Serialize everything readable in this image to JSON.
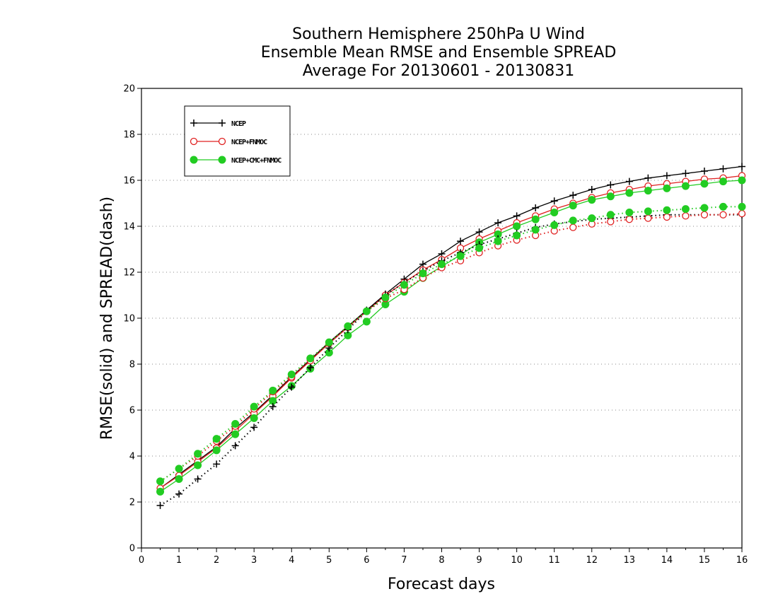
{
  "chart_data": {
    "type": "line",
    "title": [
      "Southern Hemisphere 250hPa U Wind",
      "Ensemble Mean RMSE and Ensemble SPREAD",
      "Average For 20130601 - 20130831"
    ],
    "xlabel": "Forecast days",
    "ylabel": "RMSE(solid) and SPREAD(dash)",
    "xlim": [
      0,
      16
    ],
    "ylim": [
      0,
      20
    ],
    "xticks": [
      0,
      1,
      2,
      3,
      4,
      5,
      6,
      7,
      8,
      9,
      10,
      11,
      12,
      13,
      14,
      15,
      16
    ],
    "yticks": [
      0,
      2,
      4,
      6,
      8,
      10,
      12,
      14,
      16,
      18,
      20
    ],
    "grid": "horizontal dotted",
    "legend_position": "top-left",
    "x": [
      0.5,
      1,
      1.5,
      2,
      2.5,
      3,
      3.5,
      4,
      4.5,
      5,
      5.5,
      6,
      6.5,
      7,
      7.5,
      8,
      8.5,
      9,
      9.5,
      10,
      10.5,
      11,
      11.5,
      12,
      12.5,
      13,
      13.5,
      14,
      14.5,
      15,
      15.5,
      16
    ],
    "series": [
      {
        "name": "NCEP",
        "color": "#000000",
        "marker": "plus",
        "style": "solid",
        "metric": "RMSE",
        "values": [
          2.6,
          3.2,
          3.8,
          4.4,
          5.2,
          5.9,
          6.65,
          7.45,
          8.2,
          8.95,
          9.65,
          10.35,
          11.05,
          11.7,
          12.35,
          12.8,
          13.35,
          13.75,
          14.15,
          14.45,
          14.8,
          15.1,
          15.35,
          15.6,
          15.8,
          15.95,
          16.1,
          16.2,
          16.3,
          16.4,
          16.5,
          16.6
        ]
      },
      {
        "name": "NCEP+FNMOC",
        "color": "#e02020",
        "marker": "circle-open",
        "style": "solid",
        "metric": "RMSE",
        "values": [
          2.6,
          3.15,
          3.75,
          4.35,
          5.1,
          5.85,
          6.6,
          7.4,
          8.15,
          8.9,
          9.6,
          10.3,
          11.0,
          11.55,
          12.1,
          12.55,
          13.05,
          13.45,
          13.8,
          14.15,
          14.45,
          14.75,
          15.0,
          15.25,
          15.45,
          15.6,
          15.75,
          15.85,
          15.95,
          16.05,
          16.1,
          16.2
        ]
      },
      {
        "name": "NCEP+CMC+FNMOC",
        "color": "#22cc22",
        "marker": "circle-filled",
        "style": "solid",
        "metric": "RMSE",
        "values": [
          2.45,
          3.0,
          3.6,
          4.25,
          4.95,
          5.65,
          6.4,
          7.05,
          7.8,
          8.5,
          9.25,
          9.85,
          10.6,
          11.15,
          11.75,
          12.25,
          12.75,
          13.3,
          13.65,
          14.0,
          14.3,
          14.6,
          14.9,
          15.15,
          15.3,
          15.45,
          15.55,
          15.65,
          15.75,
          15.85,
          15.95,
          16.0
        ]
      },
      {
        "name": "NCEP",
        "color": "#000000",
        "marker": "plus",
        "style": "dotted",
        "metric": "SPREAD",
        "values": [
          1.85,
          2.35,
          3.0,
          3.65,
          4.45,
          5.25,
          6.15,
          7.0,
          7.85,
          8.7,
          9.5,
          10.3,
          11.0,
          11.55,
          12.05,
          12.5,
          12.85,
          13.2,
          13.45,
          13.7,
          13.95,
          14.1,
          14.2,
          14.3,
          14.35,
          14.4,
          14.45,
          14.5,
          14.5,
          14.5,
          14.5,
          14.5
        ]
      },
      {
        "name": "NCEP+FNMOC",
        "color": "#e02020",
        "marker": "circle-open",
        "style": "dotted",
        "metric": "SPREAD",
        "values": [
          2.9,
          3.45,
          4.0,
          4.65,
          5.3,
          6.05,
          6.8,
          7.45,
          8.25,
          8.95,
          9.65,
          10.3,
          10.85,
          11.25,
          11.75,
          12.2,
          12.5,
          12.85,
          13.15,
          13.4,
          13.6,
          13.8,
          13.95,
          14.1,
          14.2,
          14.3,
          14.35,
          14.4,
          14.45,
          14.5,
          14.5,
          14.55
        ]
      },
      {
        "name": "NCEP+CMC+FNMOC",
        "color": "#22cc22",
        "marker": "circle-filled",
        "style": "dotted",
        "metric": "SPREAD",
        "values": [
          2.9,
          3.45,
          4.1,
          4.75,
          5.4,
          6.15,
          6.85,
          7.55,
          8.25,
          8.95,
          9.65,
          10.3,
          10.9,
          11.45,
          11.95,
          12.35,
          12.7,
          13.05,
          13.35,
          13.6,
          13.85,
          14.05,
          14.25,
          14.35,
          14.5,
          14.6,
          14.65,
          14.7,
          14.75,
          14.8,
          14.85,
          14.85
        ]
      }
    ]
  }
}
